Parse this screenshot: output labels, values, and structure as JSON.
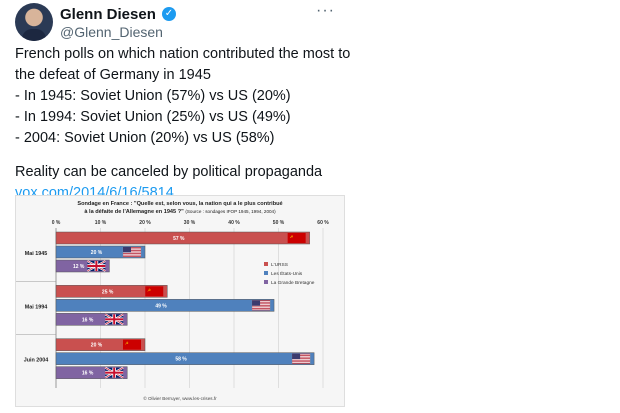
{
  "header": {
    "author_name": "Glenn Diesen",
    "handle": "@Glenn_Diesen",
    "verified_glyph": "✓",
    "more_glyph": "···",
    "avatar_icon": "avatar"
  },
  "tweet": {
    "lines": [
      "French polls on which nation contributed the most to",
      "the defeat of Germany in 1945",
      "- In 1945: Soviet Union (57%) vs US (20%)",
      "- In 1994: Soviet Union (25%) vs US (49%)",
      "- 2004: Soviet Union (20%) vs US (58%)"
    ],
    "closing": "Reality can be canceled by political propaganda",
    "link": "vox.com/2014/6/16/5814..."
  },
  "chart_data": {
    "type": "bar",
    "orientation": "horizontal",
    "title_line1": "Sondage en France : \"Quelle est, selon vous, la nation qui a le plus contribué",
    "title_line2": "à la défaite de l'Allemagne en 1945 ?\"",
    "source": "(Source : sondages IFOP 1945, 1994, 2004)",
    "categories": [
      "Mai 1945",
      "Mai 1994",
      "Juin 2004"
    ],
    "series": [
      {
        "name": "L'URSS",
        "values": [
          57,
          25,
          20
        ],
        "labels": [
          "57 %",
          "25 %",
          "20 %"
        ],
        "color": "#c9504f",
        "flag_icon": "ussr-flag-icon"
      },
      {
        "name": "Les États-Unis",
        "values": [
          20,
          49,
          58
        ],
        "labels": [
          "20 %",
          "49 %",
          "58 %"
        ],
        "color": "#4f81bd",
        "flag_icon": "us-flag-icon"
      },
      {
        "name": "La Grande Bretagne",
        "values": [
          12,
          16,
          16
        ],
        "labels": [
          "12 %",
          "16 %",
          "16 %"
        ],
        "color": "#8064a2",
        "flag_icon": "uk-flag-icon"
      }
    ],
    "xlim": [
      0,
      60
    ],
    "xticks": [
      "0 %",
      "10 %",
      "20 %",
      "30 %",
      "40 %",
      "50 %",
      "60 %"
    ],
    "grid": true,
    "legend_position": "right",
    "credit": "© Olivier Berruyer, www.les-crises.fr"
  }
}
